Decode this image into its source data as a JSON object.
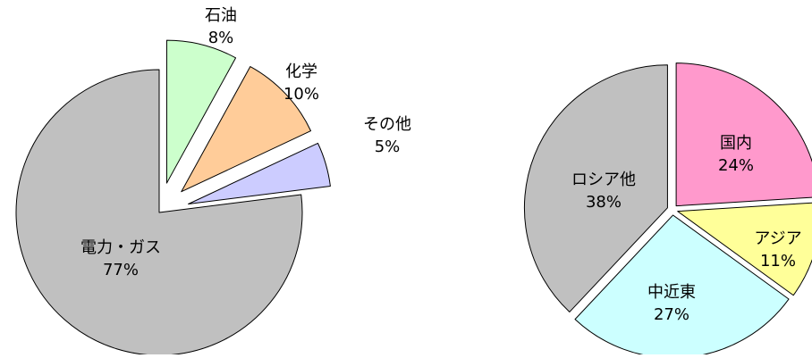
{
  "chart_data": [
    {
      "type": "pie",
      "exploded": true,
      "slices": [
        {
          "label": "石油",
          "value": 8,
          "value_label": "8%",
          "color": "#CCFFCC"
        },
        {
          "label": "化学",
          "value": 10,
          "value_label": "10%",
          "color": "#FFCC99"
        },
        {
          "label": "その他",
          "value": 5,
          "value_label": "5%",
          "color": "#CCCCFF"
        },
        {
          "label": "電力・ガス",
          "value": 77,
          "value_label": "77%",
          "color": "#C0C0C0"
        }
      ]
    },
    {
      "type": "pie",
      "exploded": true,
      "slices": [
        {
          "label": "国内",
          "value": 24,
          "value_label": "24%",
          "color": "#FF99CC"
        },
        {
          "label": "アジア",
          "value": 11,
          "value_label": "11%",
          "color": "#FFFF99"
        },
        {
          "label": "中近東",
          "value": 27,
          "value_label": "27%",
          "color": "#CCFFFF"
        },
        {
          "label": "ロシア他",
          "value": 38,
          "value_label": "38%",
          "color": "#C0C0C0"
        }
      ]
    }
  ]
}
